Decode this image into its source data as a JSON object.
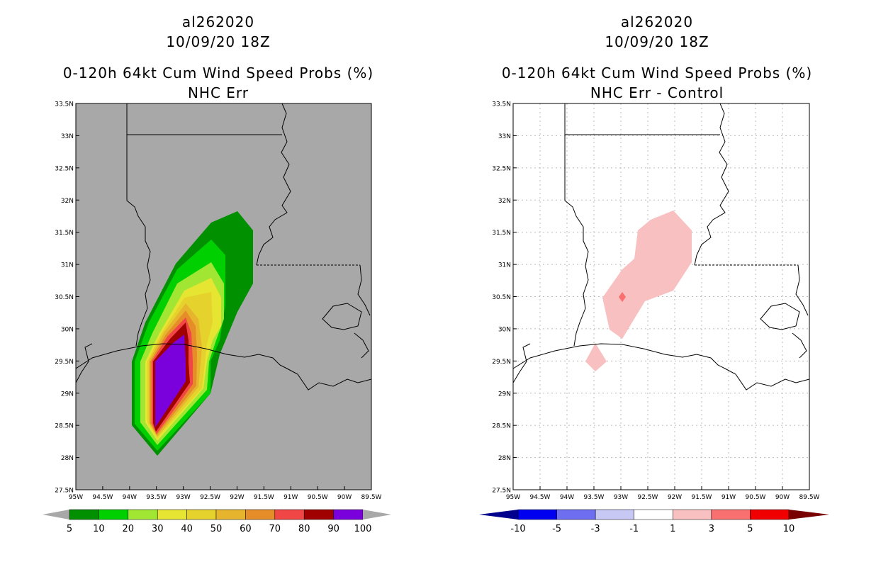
{
  "left": {
    "storm": "al262020",
    "time": "10/09/20 18Z",
    "product": "0-120h 64kt Cum Wind Speed Probs (%)",
    "subtitle": "NHC Err",
    "legend_labels": [
      "5",
      "10",
      "20",
      "30",
      "40",
      "50",
      "60",
      "70",
      "80",
      "90",
      "100"
    ],
    "colors": [
      "#009000",
      "#00d000",
      "#a0e632",
      "#e6e632",
      "#e6d22d",
      "#e6b42d",
      "#e68c28",
      "#f04646",
      "#a00000",
      "#7a00dc"
    ],
    "background": "#a8a8a8"
  },
  "right": {
    "storm": "al262020",
    "time": "10/09/20 18Z",
    "product": "0-120h 64kt Cum Wind Speed Probs (%)",
    "subtitle": "NHC Err - Control",
    "legend_labels": [
      "-10",
      "-5",
      "-3",
      "-1",
      "1",
      "3",
      "5",
      "10"
    ],
    "colors": [
      "#00008c",
      "#0000f0",
      "#6e6ef0",
      "#c8c8f5",
      "#ffffff",
      "#f8c0c0",
      "#f87070",
      "#f00000",
      "#780000"
    ]
  },
  "axes": {
    "lat_labels": [
      "33.5N",
      "33N",
      "32.5N",
      "32N",
      "31.5N",
      "31N",
      "30.5N",
      "30N",
      "29.5N",
      "29N",
      "28.5N",
      "28N",
      "27.5N"
    ],
    "lon_labels": [
      "95W",
      "94.5W",
      "94W",
      "93.5W",
      "93W",
      "92.5W",
      "92W",
      "91.5W",
      "91W",
      "90.5W",
      "90W",
      "89.5W"
    ]
  }
}
